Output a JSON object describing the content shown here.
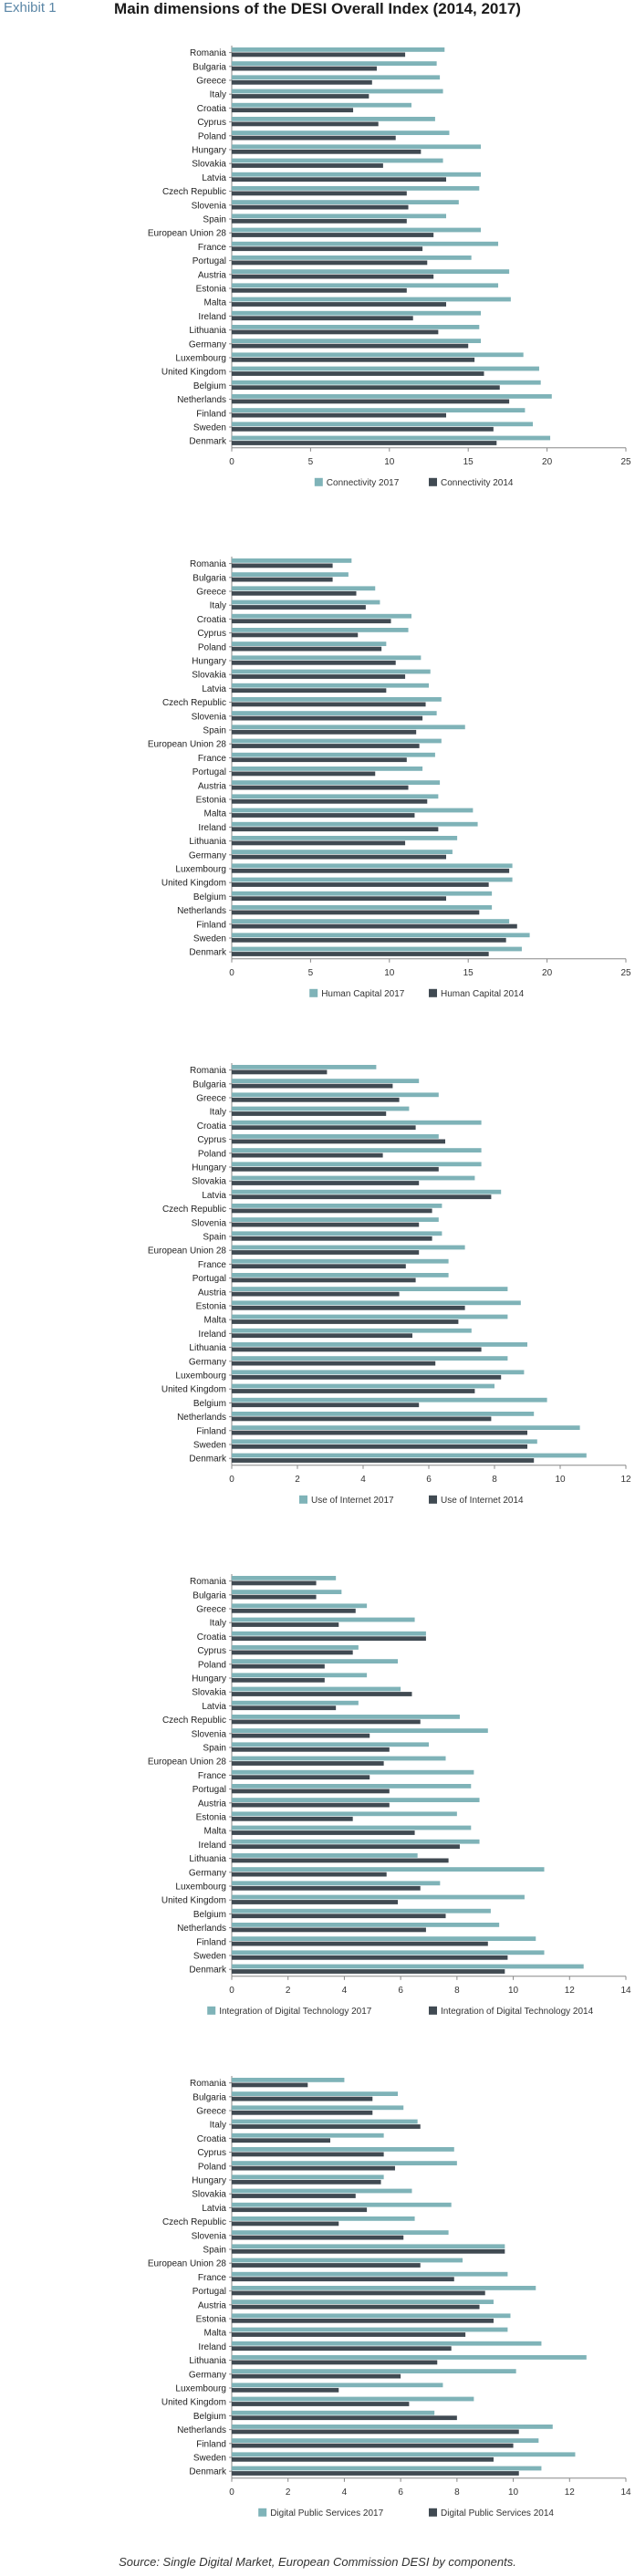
{
  "header": {
    "exhibit": "Exhibit 1",
    "title": "Main dimensions of the DESI Overall Index (2014, 2017)"
  },
  "source": "Source: Single Digital Market, European Commission DESI by components.",
  "colors": {
    "series_2017": "#7fb3b8",
    "series_2014": "#404a52"
  },
  "chart_data": [
    {
      "type": "bar",
      "orientation": "horizontal",
      "categories": [
        "Romania",
        "Bulgaria",
        "Greece",
        "Italy",
        "Croatia",
        "Cyprus",
        "Poland",
        "Hungary",
        "Slovakia",
        "Latvia",
        "Czech Republic",
        "Slovenia",
        "Spain",
        "European Union 28",
        "France",
        "Portugal",
        "Austria",
        "Estonia",
        "Malta",
        "Ireland",
        "Lithuania",
        "Germany",
        "Luxembourg",
        "United Kingdom",
        "Belgium",
        "Netherlands",
        "Finland",
        "Sweden",
        "Denmark"
      ],
      "series": [
        {
          "name": "Connectivity 2017",
          "values": [
            13.5,
            13,
            13.2,
            13.4,
            11.4,
            12.9,
            13.8,
            15.8,
            13.4,
            15.8,
            15.7,
            14.4,
            13.6,
            15.8,
            16.9,
            15.2,
            17.6,
            16.9,
            17.7,
            15.8,
            15.7,
            15.8,
            18.5,
            19.5,
            19.6,
            20.3,
            18.6,
            19.1,
            20.2
          ]
        },
        {
          "name": "Connectivity 2014",
          "values": [
            11,
            9.2,
            8.9,
            8.7,
            7.7,
            9.3,
            10.4,
            12,
            9.6,
            13.6,
            11.1,
            11.2,
            11.1,
            12.8,
            12.1,
            12.4,
            12.8,
            11.1,
            13.6,
            11.5,
            13.1,
            15,
            15.4,
            16,
            17,
            17.6,
            13.6,
            16.6,
            16.8
          ]
        }
      ],
      "xlim": [
        0,
        25
      ],
      "xticks": [
        0,
        5,
        10,
        15,
        20,
        25
      ]
    },
    {
      "type": "bar",
      "orientation": "horizontal",
      "categories": [
        "Romania",
        "Bulgaria",
        "Greece",
        "Italy",
        "Croatia",
        "Cyprus",
        "Poland",
        "Hungary",
        "Slovakia",
        "Latvia",
        "Czech Republic",
        "Slovenia",
        "Spain",
        "European Union 28",
        "France",
        "Portugal",
        "Austria",
        "Estonia",
        "Malta",
        "Ireland",
        "Lithuania",
        "Germany",
        "Luxembourg",
        "United Kingdom",
        "Belgium",
        "Netherlands",
        "Finland",
        "Sweden",
        "Denmark"
      ],
      "series": [
        {
          "name": "Human Capital 2017",
          "values": [
            7.6,
            7.4,
            9.1,
            9.4,
            11.4,
            11.2,
            9.8,
            12,
            12.6,
            12.5,
            13.3,
            13,
            14.8,
            13.3,
            12.9,
            12.1,
            13.2,
            13.1,
            15.3,
            15.6,
            14.3,
            14,
            17.8,
            17.8,
            16.5,
            16.5,
            17.6,
            18.9,
            18.4
          ]
        },
        {
          "name": "Human Capital 2014",
          "values": [
            6.4,
            6.4,
            7.9,
            8.5,
            10.1,
            8,
            9.5,
            10.4,
            11,
            9.8,
            12.3,
            12.1,
            11.7,
            11.9,
            11.1,
            9.1,
            11.2,
            12.4,
            11.6,
            13.1,
            11,
            13.6,
            17.6,
            16.3,
            13.6,
            15.7,
            18.1,
            17.4,
            16.3
          ]
        }
      ],
      "xlim": [
        0,
        25
      ],
      "xticks": [
        0,
        5,
        10,
        15,
        20,
        25
      ]
    },
    {
      "type": "bar",
      "orientation": "horizontal",
      "categories": [
        "Romania",
        "Bulgaria",
        "Greece",
        "Italy",
        "Croatia",
        "Cyprus",
        "Poland",
        "Hungary",
        "Slovakia",
        "Latvia",
        "Czech Republic",
        "Slovenia",
        "Spain",
        "European Union 28",
        "France",
        "Portugal",
        "Austria",
        "Estonia",
        "Malta",
        "Ireland",
        "Lithuania",
        "Germany",
        "Luxembourg",
        "United Kingdom",
        "Belgium",
        "Netherlands",
        "Finland",
        "Sweden",
        "Denmark"
      ],
      "series": [
        {
          "name": "Use of Internet 2017",
          "values": [
            4.4,
            5.7,
            6.3,
            5.4,
            7.6,
            6.3,
            7.6,
            7.6,
            7.4,
            8.2,
            6.4,
            6.3,
            6.4,
            7.1,
            6.6,
            6.6,
            8.4,
            8.8,
            8.4,
            7.3,
            9,
            8.4,
            8.9,
            8,
            9.6,
            9.2,
            10.6,
            9.3,
            10.8
          ]
        },
        {
          "name": "Use of Internet 2014",
          "values": [
            2.9,
            4.9,
            5.1,
            4.7,
            5.6,
            6.5,
            4.6,
            6.3,
            5.7,
            7.9,
            6.1,
            5.7,
            6.1,
            5.7,
            5.3,
            5.6,
            5.1,
            7.1,
            6.9,
            5.5,
            7.6,
            6.2,
            8.2,
            7.4,
            5.7,
            7.9,
            9,
            9,
            9.2
          ]
        }
      ],
      "xlim": [
        0,
        12
      ],
      "xticks": [
        0,
        2,
        4,
        6,
        8,
        10,
        12
      ]
    },
    {
      "type": "bar",
      "orientation": "horizontal",
      "categories": [
        "Romania",
        "Bulgaria",
        "Greece",
        "Italy",
        "Croatia",
        "Cyprus",
        "Poland",
        "Hungary",
        "Slovakia",
        "Latvia",
        "Czech Republic",
        "Slovenia",
        "Spain",
        "European Union 28",
        "France",
        "Portugal",
        "Austria",
        "Estonia",
        "Malta",
        "Ireland",
        "Lithuania",
        "Germany",
        "Luxembourg",
        "United Kingdom",
        "Belgium",
        "Netherlands",
        "Finland",
        "Sweden",
        "Denmark"
      ],
      "series": [
        {
          "name": "Integration of Digital Technology 2017",
          "values": [
            3.7,
            3.9,
            4.8,
            6.5,
            6.9,
            4.5,
            5.9,
            4.8,
            6,
            4.5,
            8.1,
            9.1,
            7,
            7.6,
            8.6,
            8.5,
            8.8,
            8,
            8.5,
            8.8,
            6.6,
            11.1,
            7.4,
            10.4,
            9.2,
            9.5,
            10.8,
            11.1,
            12.5
          ]
        },
        {
          "name": "Integration of Digital Technology 2014",
          "values": [
            3,
            3,
            4.4,
            3.8,
            6.9,
            4.3,
            3.3,
            3.3,
            6.4,
            3.7,
            6.7,
            4.9,
            5.6,
            5.4,
            4.9,
            5.6,
            5.6,
            4.3,
            6.5,
            8.1,
            7.7,
            5.5,
            6.7,
            5.9,
            7.6,
            6.9,
            9.1,
            9.8,
            9.7
          ]
        }
      ],
      "xlim": [
        0,
        14
      ],
      "xticks": [
        0,
        2,
        4,
        6,
        8,
        10,
        12,
        14
      ]
    },
    {
      "type": "bar",
      "orientation": "horizontal",
      "categories": [
        "Romania",
        "Bulgaria",
        "Greece",
        "Italy",
        "Croatia",
        "Cyprus",
        "Poland",
        "Hungary",
        "Slovakia",
        "Latvia",
        "Czech Republic",
        "Slovenia",
        "Spain",
        "European Union 28",
        "France",
        "Portugal",
        "Austria",
        "Estonia",
        "Malta",
        "Ireland",
        "Lithuania",
        "Germany",
        "Luxembourg",
        "United Kingdom",
        "Belgium",
        "Netherlands",
        "Finland",
        "Sweden",
        "Denmark"
      ],
      "series": [
        {
          "name": "Digital Public Services 2017",
          "values": [
            4,
            5.9,
            6.1,
            6.6,
            5.4,
            7.9,
            8,
            5.4,
            6.4,
            7.8,
            6.5,
            7.7,
            9.7,
            8.2,
            9.8,
            10.8,
            9.3,
            9.9,
            9.8,
            11,
            12.6,
            10.1,
            7.5,
            8.6,
            7.2,
            11.4,
            10.9,
            12.2,
            11
          ]
        },
        {
          "name": "Digital Public Services 2014",
          "values": [
            2.7,
            5,
            5,
            6.7,
            3.5,
            5.4,
            5.8,
            5.3,
            4.4,
            4.8,
            3.8,
            6.1,
            9.7,
            6.7,
            7.9,
            9,
            8.8,
            9.3,
            8.3,
            7.8,
            7.3,
            6,
            3.8,
            6.3,
            8,
            10.2,
            10,
            9.3,
            10.2
          ]
        }
      ],
      "xlim": [
        0,
        14
      ],
      "xticks": [
        0,
        2,
        4,
        6,
        8,
        10,
        12,
        14
      ]
    }
  ]
}
